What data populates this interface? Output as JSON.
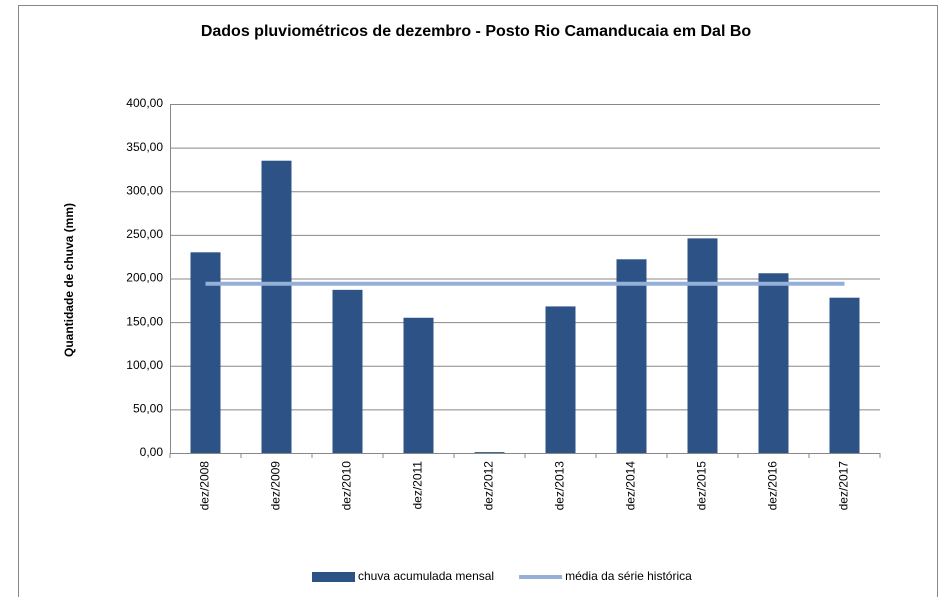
{
  "chart_data": {
    "type": "bar",
    "title": "Dados pluviométricos de dezembro - Posto Rio Camanducaia em Dal Bo",
    "y_label": "Quantidade de chuva (mm)",
    "categories": [
      "dez/2008",
      "dez/2009",
      "dez/2010",
      "dez/2011",
      "dez/2012",
      "dez/2013",
      "dez/2014",
      "dez/2015",
      "dez/2016",
      "dez/2017"
    ],
    "series": [
      {
        "name": "chuva acumulada mensal",
        "type": "bar",
        "color": "#2c5286",
        "values": [
          230,
          335,
          187,
          155,
          1,
          168,
          222,
          246,
          206,
          178
        ]
      },
      {
        "name": "média da série histórica",
        "type": "line",
        "color": "#94b0d9",
        "values": [
          194,
          194,
          194,
          194,
          194,
          194,
          194,
          194,
          194,
          194
        ]
      }
    ],
    "ylim": [
      0,
      400
    ],
    "yticks": [
      {
        "value": 0,
        "label": "0,00"
      },
      {
        "value": 50,
        "label": "50,00"
      },
      {
        "value": 100,
        "label": "100,00"
      },
      {
        "value": 150,
        "label": "150,00"
      },
      {
        "value": 200,
        "label": "200,00"
      },
      {
        "value": 250,
        "label": "250,00"
      },
      {
        "value": 300,
        "label": "300,00"
      },
      {
        "value": 350,
        "label": "350,00"
      },
      {
        "value": 400,
        "label": "400,00"
      }
    ],
    "grid": true,
    "legend": "bottom"
  }
}
